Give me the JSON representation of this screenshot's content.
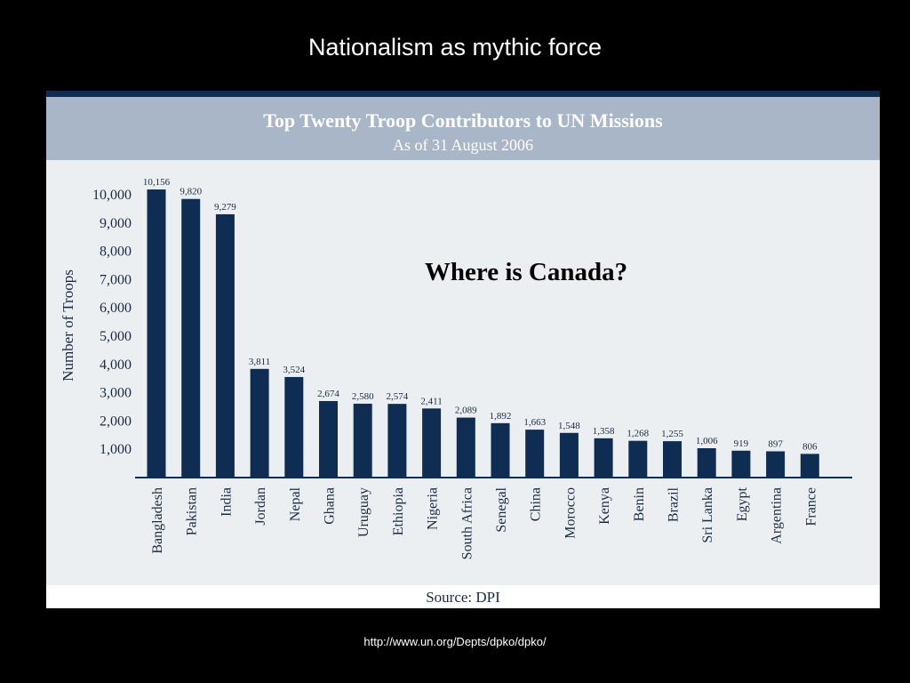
{
  "slide": {
    "title": "Nationalism as mythic force",
    "url": "http://www.un.org/Depts/dpko/dpko/"
  },
  "panel": {
    "callout": "Where is Canada?",
    "source": "Source: DPI"
  },
  "colors": {
    "background": "#000000",
    "panel": "#eceff2",
    "header": "#a8b6c8",
    "bar": "#0f2d52"
  },
  "chart_data": {
    "type": "bar",
    "title": "Top Twenty Troop Contributors to UN Missions",
    "subtitle": "As of 31 August 2006",
    "ylabel": "Number of Troops",
    "xlabel": "",
    "ylim": [
      0,
      10200
    ],
    "yticks": [
      1000,
      2000,
      3000,
      4000,
      5000,
      6000,
      7000,
      8000,
      9000,
      10000
    ],
    "ytick_labels": [
      "1,000",
      "2,000",
      "3,000",
      "4,000",
      "5,000",
      "6,000",
      "7,000",
      "8,000",
      "9,000",
      "10,000"
    ],
    "grid": false,
    "categories": [
      "Bangladesh",
      "Pakistan",
      "India",
      "Jordan",
      "Nepal",
      "Ghana",
      "Uruguay",
      "Ethiopia",
      "Nigeria",
      "South Africa",
      "Senegal",
      "China",
      "Morocco",
      "Kenya",
      "Benin",
      "Brazil",
      "Sri Lanka",
      "Egypt",
      "Argentina",
      "France"
    ],
    "values": [
      10156,
      9820,
      9279,
      3811,
      3524,
      2674,
      2580,
      2574,
      2411,
      2089,
      1892,
      1663,
      1548,
      1358,
      1268,
      1255,
      1006,
      919,
      897,
      806
    ],
    "value_labels": [
      "10,156",
      "9,820",
      "9,279",
      "3,811",
      "3,524",
      "2,674",
      "2,580",
      "2,574",
      "2,411",
      "2,089",
      "1,892",
      "1,663",
      "1,548",
      "1,358",
      "1,268",
      "1,255",
      "1,006",
      "919",
      "897",
      "806"
    ]
  }
}
